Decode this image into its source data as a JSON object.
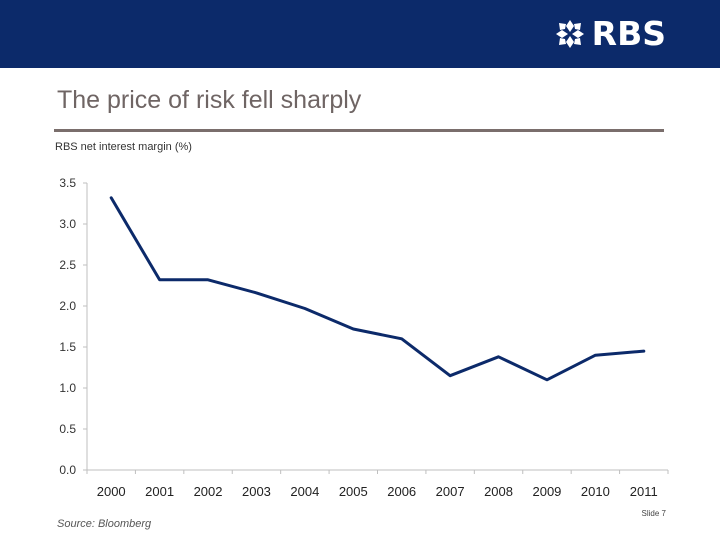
{
  "header": {
    "brand": "RBS",
    "band_color": "#0c2a6a"
  },
  "slide": {
    "title": "The price of risk fell sharply",
    "source": "Source: Bloomberg",
    "slide_number": "Slide 7"
  },
  "chart_data": {
    "type": "line",
    "title": "RBS net interest margin (%)",
    "xlabel": "",
    "ylabel": "",
    "x": [
      "2000",
      "2001",
      "2002",
      "2003",
      "2004",
      "2005",
      "2006",
      "2007",
      "2008",
      "2009",
      "2010",
      "2011"
    ],
    "y_ticks": [
      "0.0",
      "0.5",
      "1.0",
      "1.5",
      "2.0",
      "2.5",
      "3.0",
      "3.5"
    ],
    "ylim": [
      0,
      3.5
    ],
    "grid": false,
    "legend": "none",
    "series": [
      {
        "values": [
          3.32,
          2.32,
          2.32,
          2.16,
          1.97,
          1.72,
          1.6,
          1.15,
          1.38,
          1.1,
          1.4,
          1.45
        ],
        "color": "#0c2a6a"
      }
    ]
  }
}
